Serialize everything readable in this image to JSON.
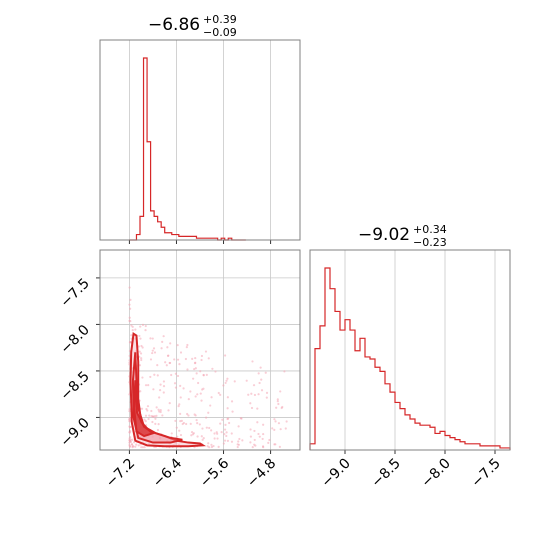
{
  "chart_data": [
    {
      "type": "histogram",
      "panel": "top-left",
      "title": {
        "median": "−6.86",
        "upper": "+0.39",
        "lower": "−0.09"
      },
      "xlim": [
        -7.7,
        -4.3
      ],
      "bin_edges_start": -7.2,
      "bin_width": 0.06,
      "counts": [
        0,
        0,
        3,
        13,
        100,
        54,
        16,
        13,
        10,
        7,
        4,
        4,
        3,
        3,
        2,
        2,
        2,
        2,
        2,
        1,
        1,
        1,
        1,
        1,
        1,
        0,
        1,
        0,
        1,
        0,
        0,
        0,
        0
      ],
      "color": "#d62728",
      "grid": true
    },
    {
      "type": "scatter+contour",
      "panel": "bottom-left",
      "xlim": [
        -7.7,
        -4.3
      ],
      "ylim": [
        -9.35,
        -7.2
      ],
      "x_ticks": [
        "−7.2",
        "−6.4",
        "−5.6",
        "−4.8"
      ],
      "x_tick_values": [
        -7.2,
        -6.4,
        -5.6,
        -4.8
      ],
      "y_ticks": [
        "−7.5",
        "−8.0",
        "−8.5",
        "−9.0"
      ],
      "y_tick_values": [
        -7.5,
        -8.0,
        -8.5,
        -9.0
      ],
      "contour_levels": [
        [
          [
            -7.13,
            -8.1
          ],
          [
            -7.08,
            -8.12
          ],
          [
            -7.05,
            -8.4
          ],
          [
            -7.05,
            -8.8
          ],
          [
            -7.0,
            -9.05
          ],
          [
            -6.85,
            -9.15
          ],
          [
            -6.6,
            -9.2
          ],
          [
            -6.4,
            -9.25
          ],
          [
            -6.2,
            -9.27
          ],
          [
            -6.0,
            -9.28
          ],
          [
            -5.95,
            -9.3
          ],
          [
            -6.2,
            -9.31
          ],
          [
            -6.6,
            -9.31
          ],
          [
            -6.9,
            -9.3
          ],
          [
            -7.1,
            -9.25
          ],
          [
            -7.16,
            -9.05
          ],
          [
            -7.18,
            -8.6
          ],
          [
            -7.17,
            -8.3
          ]
        ],
        [
          [
            -7.1,
            -8.3
          ],
          [
            -7.08,
            -8.6
          ],
          [
            -7.05,
            -8.9
          ],
          [
            -6.95,
            -9.1
          ],
          [
            -6.75,
            -9.17
          ],
          [
            -6.5,
            -9.22
          ],
          [
            -6.3,
            -9.24
          ],
          [
            -6.5,
            -9.27
          ],
          [
            -6.8,
            -9.27
          ],
          [
            -7.05,
            -9.22
          ],
          [
            -7.13,
            -9.0
          ],
          [
            -7.14,
            -8.6
          ]
        ],
        [
          [
            -7.1,
            -8.6
          ],
          [
            -7.07,
            -8.95
          ],
          [
            -6.95,
            -9.1
          ],
          [
            -6.8,
            -9.17
          ],
          [
            -6.95,
            -9.2
          ],
          [
            -7.08,
            -9.15
          ],
          [
            -7.12,
            -8.9
          ]
        ]
      ],
      "scatter_color": "#f4a6b4",
      "color": "#d62728",
      "grid": true
    },
    {
      "type": "histogram",
      "panel": "bottom-right",
      "title": {
        "median": "−9.02",
        "upper": "+0.34",
        "lower": "−0.23"
      },
      "xlim": [
        -9.35,
        -7.35
      ],
      "x_ticks": [
        "−9.0",
        "−8.5",
        "−8.0",
        "−7.5"
      ],
      "x_tick_values": [
        -9.0,
        -8.5,
        -8.0,
        -7.5
      ],
      "bin_edges_start": -9.35,
      "bin_width": 0.05,
      "counts": [
        3,
        49,
        60,
        88,
        78,
        67,
        58,
        63,
        58,
        48,
        54,
        45,
        44,
        40,
        38,
        32,
        28,
        23,
        20,
        17,
        15,
        13,
        12,
        12,
        11,
        8,
        9,
        7,
        6,
        5,
        4,
        3,
        3,
        3,
        2,
        2,
        2,
        2,
        1,
        1
      ],
      "color": "#d62728",
      "grid": true
    }
  ]
}
